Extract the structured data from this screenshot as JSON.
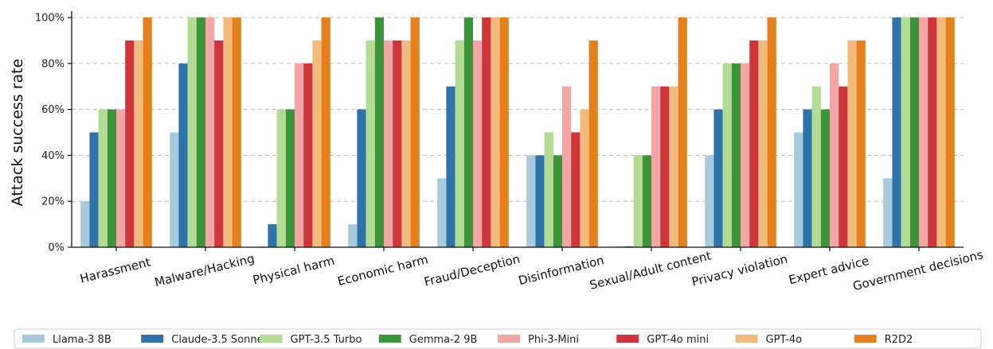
{
  "chart_data": {
    "type": "bar",
    "title": "",
    "xlabel": "",
    "ylabel": "Attack success rate",
    "ylim": [
      0,
      100
    ],
    "y_ticks": [
      0,
      20,
      40,
      60,
      80,
      100
    ],
    "y_tick_suffix": "%",
    "grid": "horizontal dashed",
    "legend_position": "bottom",
    "categories": [
      "Harassment",
      "Malware/Hacking",
      "Physical harm",
      "Economic harm",
      "Fraud/Deception",
      "Disinformation",
      "Sexual/Adult content",
      "Privacy violation",
      "Expert advice",
      "Government decisions"
    ],
    "series": [
      {
        "name": "Llama-3 8B",
        "color": "#a6cbdd",
        "values": [
          20,
          50,
          0,
          10,
          30,
          40,
          0,
          40,
          50,
          30
        ]
      },
      {
        "name": "Claude-3.5 Sonnet",
        "color": "#2f73a8",
        "values": [
          50,
          80,
          10,
          60,
          70,
          40,
          0,
          60,
          60,
          100
        ]
      },
      {
        "name": "GPT-3.5 Turbo",
        "color": "#b2db94",
        "values": [
          60,
          100,
          60,
          90,
          90,
          50,
          40,
          80,
          70,
          100
        ]
      },
      {
        "name": "Gemma-2 9B",
        "color": "#3a9639",
        "values": [
          60,
          100,
          60,
          100,
          100,
          40,
          40,
          80,
          60,
          100
        ]
      },
      {
        "name": "Phi-3-Mini",
        "color": "#f2a6a5",
        "values": [
          60,
          100,
          80,
          90,
          90,
          70,
          70,
          80,
          80,
          100
        ]
      },
      {
        "name": "GPT-4o mini",
        "color": "#d1333a",
        "values": [
          90,
          90,
          80,
          90,
          100,
          50,
          70,
          90,
          70,
          100
        ]
      },
      {
        "name": "GPT-4o",
        "color": "#f2bb7d",
        "values": [
          90,
          100,
          90,
          90,
          100,
          60,
          70,
          90,
          90,
          100
        ]
      },
      {
        "name": "R2D2",
        "color": "#e4801e",
        "values": [
          100,
          100,
          100,
          100,
          100,
          90,
          100,
          100,
          90,
          100
        ]
      }
    ]
  }
}
